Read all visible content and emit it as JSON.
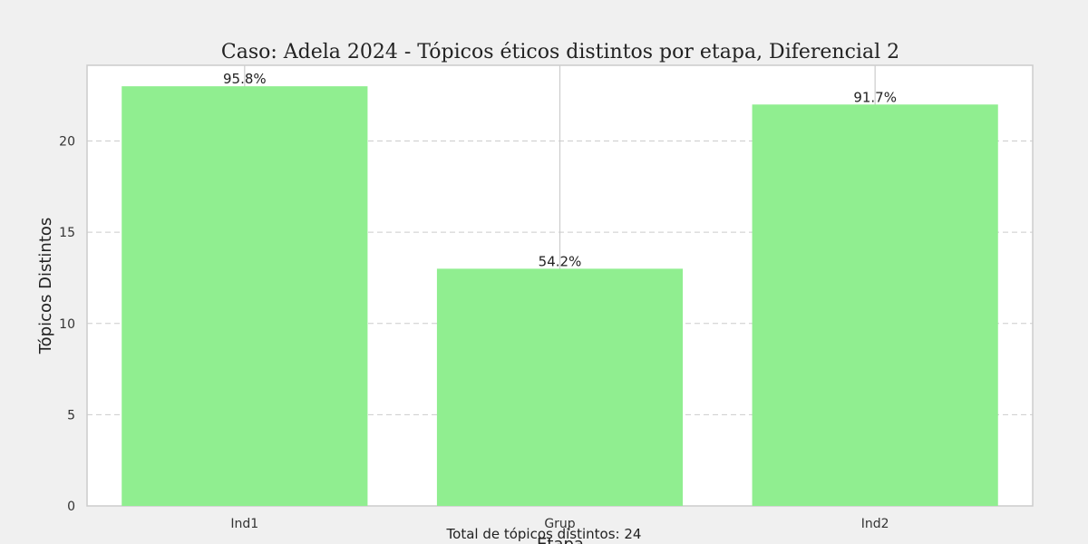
{
  "chart_data": {
    "type": "bar",
    "title": "Caso: Adela 2024 - Tópicos éticos distintos por etapa, Diferencial 2",
    "xlabel": "Etapa",
    "ylabel": "Tópicos Distintos",
    "categories": [
      "Ind1",
      "Grup",
      "Ind2"
    ],
    "values": [
      23,
      13,
      22
    ],
    "data_labels": [
      "95.8%",
      "54.2%",
      "91.7%"
    ],
    "ylim": [
      0,
      24.15
    ],
    "yticks": [
      0,
      5,
      10,
      15,
      20
    ],
    "grid": true,
    "legend": "none",
    "footer": "Total de tópicos distintos: 24"
  },
  "colors": {
    "bar": "#90ee90",
    "background": "#f0f0f0",
    "plot_background": "#ffffff",
    "grid": "#cccccc",
    "axis": "#cccccc"
  }
}
